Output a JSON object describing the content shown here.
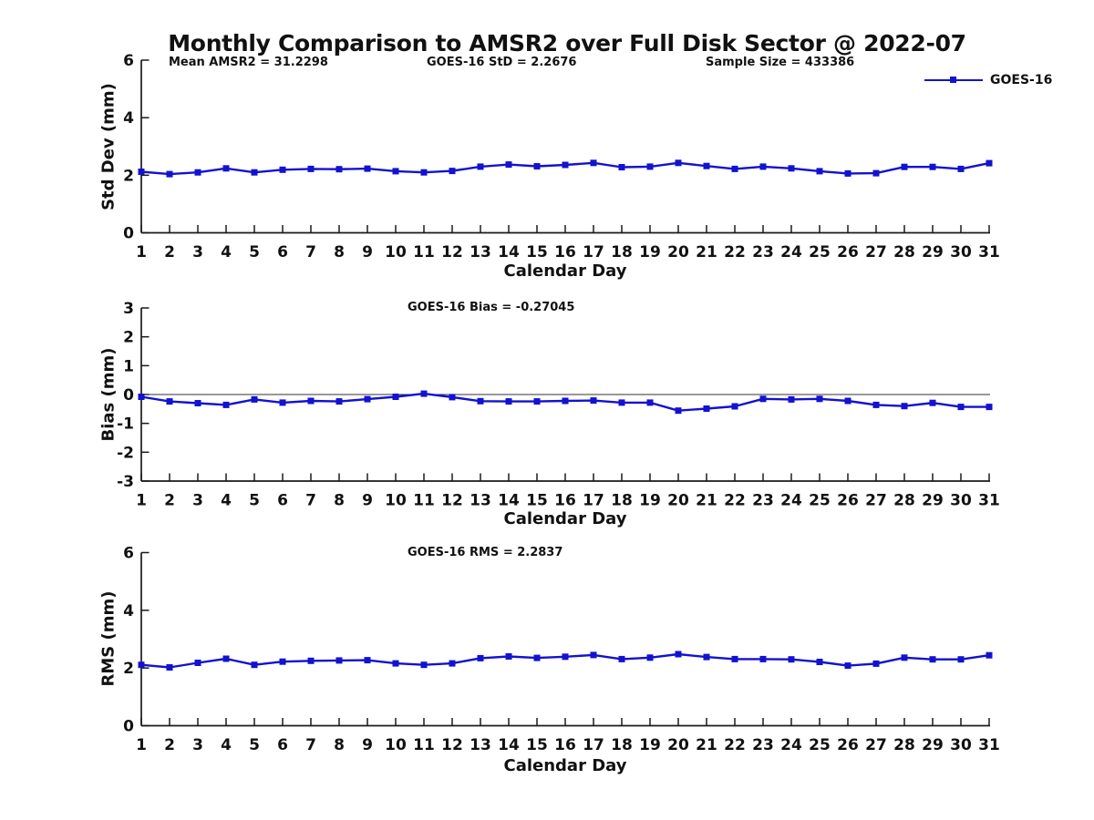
{
  "title": "Monthly Comparison to AMSR2 over Full Disk Sector @ 2022-07",
  "colors": {
    "series": "#1212D0",
    "axis": "#1a1a1a",
    "zero_line": "#333333"
  },
  "legend": {
    "label": "GOES-16"
  },
  "chart_data": [
    {
      "type": "line",
      "name": "std-dev-panel",
      "annotations": [
        "Mean AMSR2 = 31.2298",
        "GOES-16 StD = 2.2676",
        "Sample Size = 433386"
      ],
      "ylabel": "Std Dev (mm)",
      "xlabel": "Calendar Day",
      "ylim": [
        0,
        6
      ],
      "yticks": [
        0,
        2,
        4,
        6
      ],
      "xlim": [
        1,
        31
      ],
      "grid": false,
      "legend_position": "top-right",
      "x": [
        1,
        2,
        3,
        4,
        5,
        6,
        7,
        8,
        9,
        10,
        11,
        12,
        13,
        14,
        15,
        16,
        17,
        18,
        19,
        20,
        21,
        22,
        23,
        24,
        25,
        26,
        27,
        28,
        29,
        30,
        31
      ],
      "series": [
        {
          "name": "GOES-16",
          "values": [
            2.12,
            2.04,
            2.1,
            2.24,
            2.1,
            2.19,
            2.22,
            2.21,
            2.23,
            2.14,
            2.1,
            2.15,
            2.3,
            2.37,
            2.31,
            2.36,
            2.43,
            2.28,
            2.3,
            2.43,
            2.32,
            2.22,
            2.3,
            2.24,
            2.14,
            2.06,
            2.07,
            2.29,
            2.29,
            2.22,
            2.42
          ]
        }
      ]
    },
    {
      "type": "line",
      "name": "bias-panel",
      "annotations": [
        "GOES-16 Bias = -0.27045"
      ],
      "ylabel": "Bias (mm)",
      "xlabel": "Calendar Day",
      "ylim": [
        -3,
        3
      ],
      "yticks": [
        -3,
        -2,
        -1,
        0,
        1,
        2,
        3
      ],
      "xlim": [
        1,
        31
      ],
      "grid": false,
      "zero_line": true,
      "x": [
        1,
        2,
        3,
        4,
        5,
        6,
        7,
        8,
        9,
        10,
        11,
        12,
        13,
        14,
        15,
        16,
        17,
        18,
        19,
        20,
        21,
        22,
        23,
        24,
        25,
        26,
        27,
        28,
        29,
        30,
        31
      ],
      "series": [
        {
          "name": "GOES-16",
          "values": [
            -0.08,
            -0.24,
            -0.3,
            -0.36,
            -0.17,
            -0.28,
            -0.22,
            -0.24,
            -0.16,
            -0.08,
            0.03,
            -0.09,
            -0.23,
            -0.24,
            -0.24,
            -0.22,
            -0.21,
            -0.28,
            -0.28,
            -0.56,
            -0.49,
            -0.41,
            -0.15,
            -0.17,
            -0.15,
            -0.22,
            -0.36,
            -0.4,
            -0.29,
            -0.43,
            -0.43
          ]
        }
      ]
    },
    {
      "type": "line",
      "name": "rms-panel",
      "annotations": [
        "GOES-16 RMS = 2.2837"
      ],
      "ylabel": "RMS (mm)",
      "xlabel": "Calendar Day",
      "ylim": [
        0,
        6
      ],
      "yticks": [
        0,
        2,
        4,
        6
      ],
      "xlim": [
        1,
        31
      ],
      "grid": false,
      "x": [
        1,
        2,
        3,
        4,
        5,
        6,
        7,
        8,
        9,
        10,
        11,
        12,
        13,
        14,
        15,
        16,
        17,
        18,
        19,
        20,
        21,
        22,
        23,
        24,
        25,
        26,
        27,
        28,
        29,
        30,
        31
      ],
      "series": [
        {
          "name": "GOES-16",
          "values": [
            2.11,
            2.02,
            2.18,
            2.32,
            2.11,
            2.22,
            2.25,
            2.26,
            2.27,
            2.16,
            2.11,
            2.16,
            2.34,
            2.4,
            2.35,
            2.39,
            2.45,
            2.31,
            2.36,
            2.48,
            2.38,
            2.31,
            2.31,
            2.3,
            2.21,
            2.08,
            2.15,
            2.36,
            2.3,
            2.3,
            2.44
          ]
        }
      ]
    }
  ]
}
